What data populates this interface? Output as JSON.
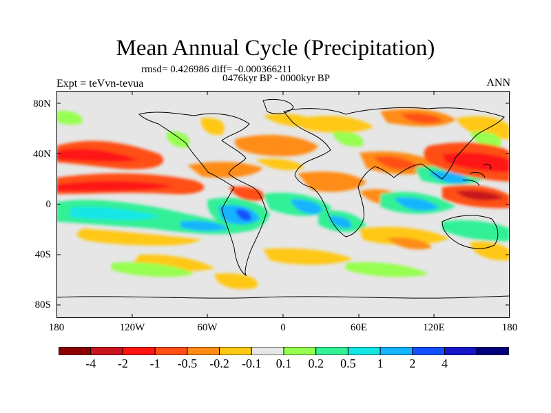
{
  "title": "Mean Annual Cycle (Precipitation)",
  "stats_line": "rmsd= 0.426986 diff= -0.000366211",
  "period_line": "0476kyr BP - 0000kyr BP",
  "experiment_label": "Expt = teVvn-tevua",
  "season_label": "ANN",
  "y_ticks": [
    "80N",
    "40N",
    "0",
    "40S",
    "80S"
  ],
  "x_ticks": [
    "180",
    "120W",
    "60W",
    "0",
    "60E",
    "120E",
    "180"
  ],
  "colorbar": {
    "colors": [
      "#8b0000",
      "#c8141e",
      "#ff1414",
      "#ff5014",
      "#ff8c14",
      "#ffc814",
      "#e6e6e6",
      "#96ff50",
      "#32f096",
      "#14e6e6",
      "#14b4ff",
      "#1450ff",
      "#1414c8",
      "#00007d"
    ],
    "labels": [
      "-4",
      "-2",
      "-1",
      "-0.5",
      "-0.2",
      "-0.1",
      "0.1",
      "0.2",
      "0.5",
      "1",
      "2",
      "4"
    ]
  },
  "chart_data": {
    "type": "heatmap",
    "title": "Mean Annual Cycle (Precipitation)",
    "variable": "precipitation difference",
    "xlim": [
      -180,
      180
    ],
    "ylim": [
      -90,
      90
    ],
    "contour_levels": [
      -4,
      -2,
      -1,
      -0.5,
      -0.2,
      -0.1,
      0.1,
      0.2,
      0.5,
      1,
      2,
      4
    ],
    "regions": [
      {
        "lon": -155,
        "lat": 35,
        "value": -1
      },
      {
        "lon": -160,
        "lat": 10,
        "value": -1
      },
      {
        "lon": -130,
        "lat": 12,
        "value": -0.5
      },
      {
        "lon": -95,
        "lat": 8,
        "value": -1
      },
      {
        "lon": -150,
        "lat": -5,
        "value": 0.5
      },
      {
        "lon": -120,
        "lat": -10,
        "value": 0.5
      },
      {
        "lon": -70,
        "lat": -12,
        "value": 0.5
      },
      {
        "lon": -25,
        "lat": 2,
        "value": -0.5
      },
      {
        "lon": 20,
        "lat": -8,
        "value": 0.5
      },
      {
        "lon": 60,
        "lat": 8,
        "value": 0.5
      },
      {
        "lon": 100,
        "lat": 0,
        "value": 1
      },
      {
        "lon": 130,
        "lat": -2,
        "value": -1
      },
      {
        "lon": 150,
        "lat": 25,
        "value": -1
      },
      {
        "lon": 160,
        "lat": 35,
        "value": -1
      },
      {
        "lon": -35,
        "lat": -50,
        "value": -0.2
      },
      {
        "lon": -90,
        "lat": -48,
        "value": -0.2
      },
      {
        "lon": 80,
        "lat": 60,
        "value": -0.2
      },
      {
        "lon": -170,
        "lat": 60,
        "value": 0.2
      }
    ]
  }
}
